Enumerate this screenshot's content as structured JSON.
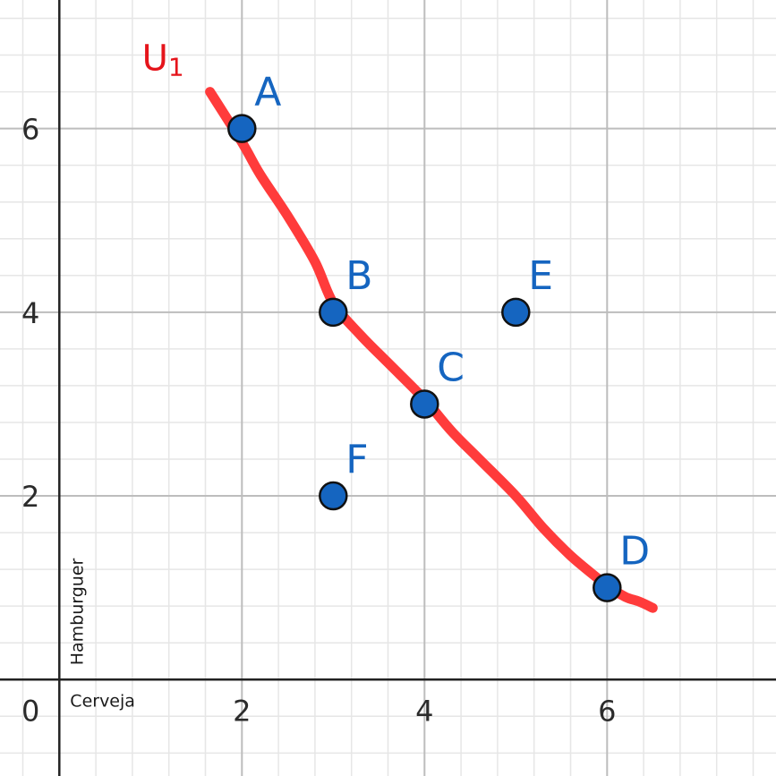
{
  "chart_data": {
    "type": "scatter",
    "xlabel": "Cerveja",
    "ylabel": "Hamburguer",
    "origin_label": "0",
    "xlim": [
      -0.65,
      7.85
    ],
    "ylim": [
      -1.05,
      7.4
    ],
    "x_ticks": [
      2,
      4,
      6
    ],
    "y_ticks": [
      2,
      4,
      6
    ],
    "grid": true,
    "minor_grid_step": 0.4,
    "colors": {
      "points": "#1565c0",
      "curve": "#ff3b3b",
      "curve_label": "#e5141b",
      "major_grid": "#bdbdbd",
      "minor_grid": "#e6e6e6",
      "axis": "#222222"
    },
    "points": [
      {
        "label": "A",
        "x": 2,
        "y": 6
      },
      {
        "label": "B",
        "x": 3,
        "y": 4
      },
      {
        "label": "C",
        "x": 4,
        "y": 3
      },
      {
        "label": "D",
        "x": 6,
        "y": 1
      },
      {
        "label": "E",
        "x": 5,
        "y": 4
      },
      {
        "label": "F",
        "x": 3,
        "y": 2
      }
    ],
    "curve": {
      "label_main": "U",
      "label_sub": "1",
      "x": [
        1.65,
        2.0,
        2.2,
        2.5,
        2.8,
        3.0,
        3.3,
        3.6,
        4.0,
        4.3,
        4.6,
        5.0,
        5.3,
        5.6,
        5.9,
        6.0,
        6.2,
        6.35,
        6.5
      ],
      "y": [
        6.4,
        5.85,
        5.5,
        5.05,
        4.55,
        4.1,
        3.75,
        3.45,
        3.05,
        2.7,
        2.4,
        2.0,
        1.65,
        1.35,
        1.1,
        1.02,
        0.9,
        0.85,
        0.78
      ]
    }
  }
}
